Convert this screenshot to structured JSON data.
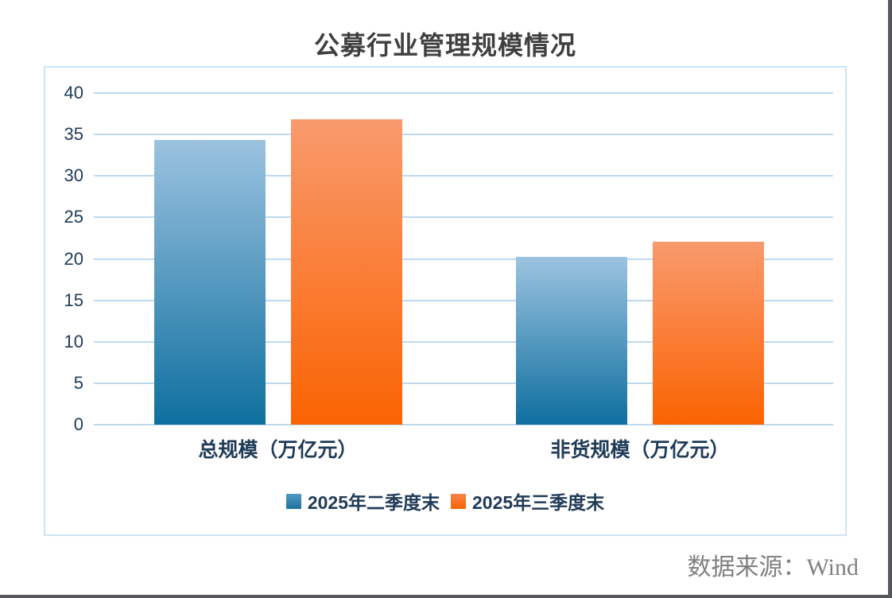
{
  "chart": {
    "title": "公募行业管理规模情况",
    "source": "数据来源：Wind",
    "colors": {
      "frame_border": "#cfe4f5",
      "gridline": "#bdd9ef",
      "axis_text": "#203b58",
      "title_text": "#3f3f3f",
      "source_text": "#808080"
    },
    "chart_data": {
      "type": "bar",
      "title": "公募行业管理规模情况",
      "categories": [
        "总规模（万亿元）",
        "非货规模（万亿元）"
      ],
      "series": [
        {
          "name": "2025年二季度末",
          "values": [
            34.3,
            20.2
          ],
          "color_top": "#9cc3e0",
          "color_bottom": "#0e6f9f",
          "legend_color_top": "#4e9ac4",
          "legend_color_bottom": "#20709e"
        },
        {
          "name": "2025年三季度末",
          "values": [
            36.8,
            22.1
          ],
          "color_top": "#f99a6d",
          "color_bottom": "#fa6302",
          "legend_color_top": "#f8834b",
          "legend_color_bottom": "#f96301"
        }
      ],
      "xlabel": "",
      "ylabel": "",
      "ylim": [
        0,
        40
      ],
      "yticks": [
        0,
        5,
        10,
        15,
        20,
        25,
        30,
        35,
        40
      ],
      "grid": true,
      "legend_position": "bottom"
    }
  }
}
